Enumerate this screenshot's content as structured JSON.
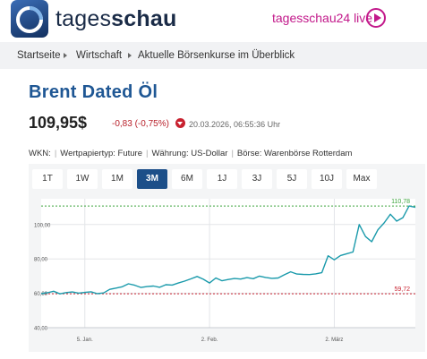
{
  "header": {
    "brand_regular": "tages",
    "brand_bold": "schau",
    "live_label": "tagesschau24 live",
    "live_icon": "play-circle-icon",
    "accent_color": "#c2188a"
  },
  "breadcrumb": [
    "Startseite",
    "Wirtschaft",
    "Aktuelle Börsenkurse im Überblick"
  ],
  "instrument": {
    "name": "Brent Dated Öl",
    "price": "109,95$",
    "change": "-0,83 (-0,75%)",
    "change_icon": "arrow-down-circle-icon",
    "timestamp": "20.03.2026, 06:55:36 Uhr"
  },
  "meta": {
    "wkn": "WKN:",
    "type": "Wertpapiertyp: Future",
    "currency": "Währung: US-Dollar",
    "exchange": "Börse: Warenbörse Rotterdam"
  },
  "tabs": [
    {
      "label": "1T",
      "active": false
    },
    {
      "label": "1W",
      "active": false
    },
    {
      "label": "1M",
      "active": false
    },
    {
      "label": "3M",
      "active": true
    },
    {
      "label": "6M",
      "active": false
    },
    {
      "label": "1J",
      "active": false
    },
    {
      "label": "3J",
      "active": false
    },
    {
      "label": "5J",
      "active": false
    },
    {
      "label": "10J",
      "active": false
    },
    {
      "label": "Max",
      "active": false
    }
  ],
  "chart_data": {
    "type": "line",
    "y_ticks": [
      "100,00",
      "80,00",
      "60,00",
      "40,00"
    ],
    "y_tick_values": [
      100,
      80,
      60,
      40
    ],
    "ylim": [
      40,
      115
    ],
    "x_ticks": [
      "5. Jan.",
      "2. Feb.",
      "2. März"
    ],
    "x_tick_index": [
      7,
      27,
      47
    ],
    "max_label": "110,78",
    "min_label": "59,72",
    "max_value": 110.78,
    "min_value": 59.72,
    "max_color": "#3aa33a",
    "min_color": "#c8212f",
    "line_color": "#1a9aab",
    "grid": true,
    "series": [
      {
        "values": [
          59.8,
          60.3,
          61.2,
          59.7,
          60.4,
          60.8,
          60.1,
          60.5,
          60.9,
          59.8,
          60.2,
          62.3,
          63.0,
          63.8,
          65.5,
          64.7,
          63.4,
          63.9,
          64.2,
          63.5,
          65.0,
          64.8,
          66.0,
          67.1,
          68.4,
          69.8,
          68.2,
          66.0,
          68.9,
          67.3,
          68.0,
          68.6,
          68.3,
          69.1,
          68.5,
          70.0,
          69.2,
          68.7,
          68.9,
          70.8,
          72.5,
          71.2,
          71.0,
          70.9,
          71.3,
          72.0,
          81.8,
          79.5,
          82.0,
          83.0,
          84.0,
          100.0,
          93.0,
          90.0,
          97.0,
          101.0,
          106.0,
          102.0,
          104.0,
          110.78,
          110.0
        ]
      }
    ]
  }
}
